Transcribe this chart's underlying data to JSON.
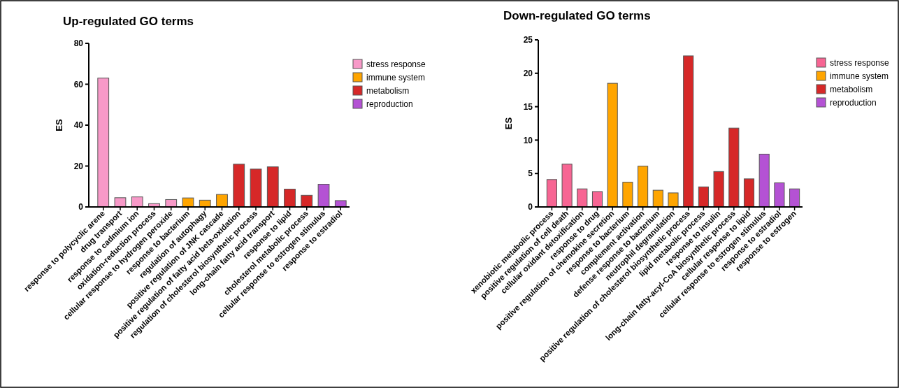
{
  "chart_data": [
    {
      "type": "bar",
      "title": "Up-regulated GO terms",
      "ylabel": "ES",
      "stacked": true,
      "legend": "top right",
      "grid": false,
      "categories": [
        "response to polycyclic arene",
        "drug transport",
        "response to cadmium ion",
        "oxidation-reduction process",
        "cellular response to hydrogen peroxide",
        "response to bacterium",
        "regulation of autophagy",
        "positive regulation of JNK cascade",
        "positive regulation of fatty acid beta-oxidation",
        "regulation of cholesterol biosynthetic process",
        "long-chain fatty acid transport",
        "response to lipid",
        "cholesterol metabolic process",
        "cellular response to estrogen stimulus",
        "response to estradiol"
      ],
      "ylim": [
        0,
        80
      ],
      "yticks": [
        0,
        20,
        40,
        60,
        80
      ],
      "series": [
        {
          "name": "stress response",
          "color": "#f799c8",
          "values": [
            63,
            4.5,
            4.9,
            1.6,
            3.6,
            null,
            null,
            null,
            null,
            null,
            null,
            null,
            null,
            null,
            null
          ]
        },
        {
          "name": "immune system",
          "color": "#ffa500",
          "values": [
            null,
            null,
            null,
            null,
            null,
            4.4,
            3.3,
            6.1,
            null,
            null,
            null,
            null,
            null,
            null,
            null
          ]
        },
        {
          "name": "metabolism",
          "color": "#d62828",
          "values": [
            null,
            null,
            null,
            null,
            null,
            null,
            null,
            null,
            20.9,
            18.5,
            19.6,
            8.7,
            5.7,
            null,
            null
          ]
        },
        {
          "name": "reproduction",
          "color": "#b452d4",
          "values": [
            null,
            null,
            null,
            null,
            null,
            null,
            null,
            null,
            null,
            null,
            null,
            null,
            null,
            11.1,
            3.1
          ]
        }
      ]
    },
    {
      "type": "bar",
      "title": "Down-regulated GO terms",
      "ylabel": "ES",
      "stacked": true,
      "legend": "top right",
      "grid": false,
      "categories": [
        "xenobiotic metabolic process",
        "positive regulation of cell death",
        "cellular oxidant detoxification",
        "response to drug",
        "positive regulation of chemokine secretion",
        "response to bacterium",
        "complement activation",
        "defense response to bacterium",
        "neutrophil degranulation",
        "positive regulation of cholesterol biosynthetic process",
        "lipid metabolic process",
        "response to insulin",
        "long-chain fatty-acyl-CoA biosynthetic process",
        "cellular response to lipid",
        "cellular response to estrogen stimulus",
        "response to estradiol",
        "response to estrogen"
      ],
      "ylim": [
        0,
        25
      ],
      "yticks": [
        0,
        5,
        10,
        15,
        20,
        25
      ],
      "series": [
        {
          "name": "stress response",
          "color": "#f76593",
          "values": [
            4.1,
            6.4,
            2.7,
            2.3,
            null,
            null,
            null,
            null,
            null,
            null,
            null,
            null,
            null,
            null,
            null,
            null,
            null
          ]
        },
        {
          "name": "immune system",
          "color": "#ffa500",
          "values": [
            null,
            null,
            null,
            null,
            18.5,
            3.7,
            6.1,
            2.5,
            2.1,
            null,
            null,
            null,
            null,
            null,
            null,
            null,
            null
          ]
        },
        {
          "name": "metabolism",
          "color": "#d62828",
          "values": [
            null,
            null,
            null,
            null,
            null,
            null,
            null,
            null,
            null,
            22.6,
            3.0,
            5.3,
            11.8,
            4.2,
            null,
            null,
            null
          ]
        },
        {
          "name": "reproduction",
          "color": "#b452d4",
          "values": [
            null,
            null,
            null,
            null,
            null,
            null,
            null,
            null,
            null,
            null,
            null,
            null,
            null,
            null,
            7.9,
            3.6,
            2.7
          ]
        }
      ]
    }
  ]
}
